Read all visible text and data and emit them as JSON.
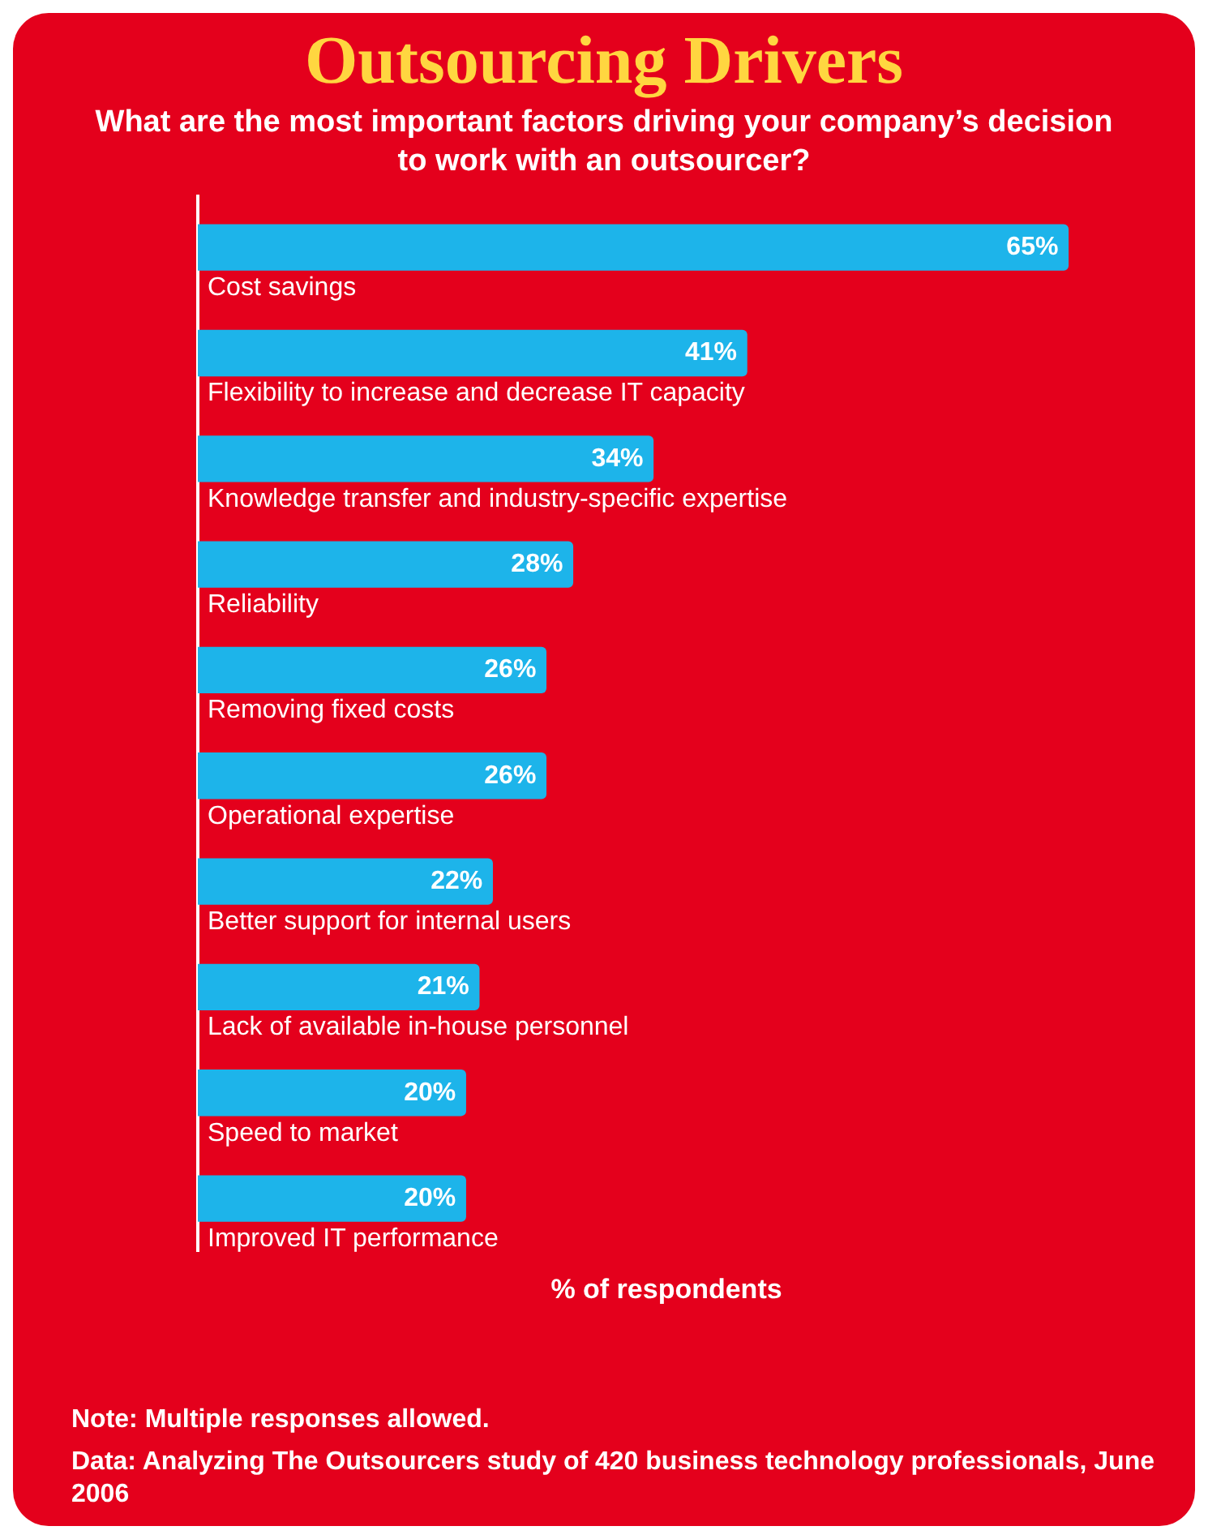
{
  "chart_data": {
    "type": "bar",
    "orientation": "horizontal",
    "title": "Outsourcing Drivers",
    "subtitle": "What are the most important factors driving your company’s decision to work with an outsourcer?",
    "xlabel": "% of respondents",
    "categories": [
      "Cost savings",
      "Flexibility to increase and decrease IT capacity",
      "Knowledge transfer and industry-specific expertise",
      "Reliability",
      "Removing fixed costs",
      "Operational expertise",
      "Better support for internal users",
      "Lack of available in-house personnel",
      "Speed to market",
      "Improved IT performance"
    ],
    "values": [
      65,
      41,
      34,
      28,
      26,
      26,
      22,
      21,
      20,
      20
    ],
    "value_labels": [
      "65%",
      "41%",
      "34%",
      "28%",
      "26%",
      "26%",
      "22%",
      "21%",
      "20%",
      "20%"
    ],
    "color": "#1db4ea",
    "grid": false,
    "legend": false,
    "annotations": [
      "Note: Multiple responses allowed.",
      "Data: Analyzing The Outsourcers study of 420 business technology professionals, June 2006"
    ]
  }
}
